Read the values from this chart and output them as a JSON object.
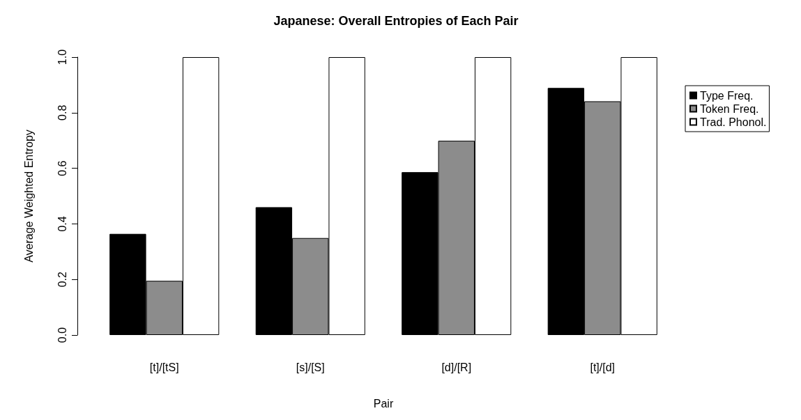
{
  "chart_data": {
    "type": "bar",
    "title": "Japanese: Overall Entropies of Each Pair",
    "xlabel": "Pair",
    "ylabel": "Average Weighted Entropy",
    "categories": [
      "[t]/[tS]",
      "[s]/[S]",
      "[d]/[R]",
      "[t]/[d]"
    ],
    "series": [
      {
        "name": "Type Freq.",
        "color": "#000000",
        "values": [
          0.364,
          0.46,
          0.586,
          0.889
        ]
      },
      {
        "name": "Token Freq.",
        "color": "#8c8c8c",
        "values": [
          0.195,
          0.349,
          0.699,
          0.841
        ]
      },
      {
        "name": "Trad. Phonol.",
        "color": "#ffffff",
        "values": [
          1.0,
          1.0,
          1.0,
          1.0
        ]
      }
    ],
    "ylim": [
      0,
      1
    ],
    "yticks": [
      {
        "value": 0,
        "label": "0.0"
      },
      0.2,
      0.4,
      0.6,
      0.8,
      {
        "value": 1,
        "label": "1.0"
      }
    ],
    "grid": false,
    "legend": "top right"
  }
}
